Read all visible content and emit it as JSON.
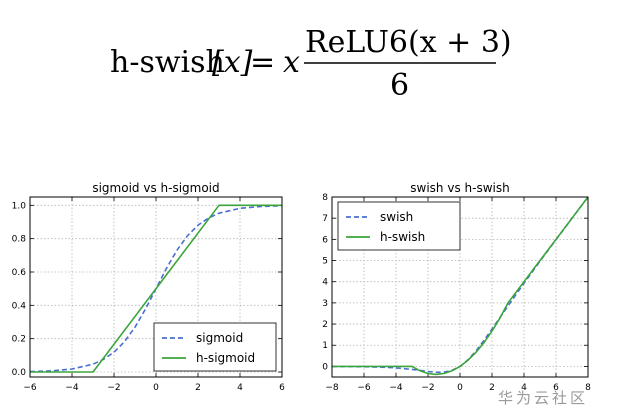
{
  "formula": {
    "lhs": "h-swish",
    "lhs_arg": "[x]",
    "equals": "=",
    "x": "x",
    "numerator": "ReLU6(x + 3)",
    "denominator": "6"
  },
  "watermark": {
    "text": "华为云社区",
    "url_text": "https://"
  },
  "colors": {
    "dashed_series": "#4a6fd2",
    "solid_series": "#3aa53a",
    "grid": "#b5b5b5"
  },
  "chart_data": [
    {
      "type": "line",
      "title": "sigmoid vs h-sigmoid",
      "xlabel": "",
      "ylabel": "",
      "xlim": [
        -6,
        6
      ],
      "ylim": [
        -0.03,
        1.05
      ],
      "xticks": [
        -6,
        -4,
        -2,
        0,
        2,
        4,
        6
      ],
      "xtick_labels": [
        "−6",
        "−4",
        "−2",
        "0",
        "2",
        "4",
        "6"
      ],
      "yticks": [
        0.0,
        0.2,
        0.4,
        0.6,
        0.8,
        1.0
      ],
      "ytick_labels": [
        "0.0",
        "0.2",
        "0.4",
        "0.6",
        "0.8",
        "1.0"
      ],
      "grid": true,
      "legend_position": "lower-right",
      "series": [
        {
          "name": "sigmoid",
          "style": "dashed",
          "color": "#4a6fd2",
          "x": [
            -6,
            -5,
            -4,
            -3,
            -2.5,
            -2,
            -1.5,
            -1,
            -0.5,
            0,
            0.5,
            1,
            1.5,
            2,
            2.5,
            3,
            4,
            5,
            6
          ],
          "y": [
            0.0025,
            0.0067,
            0.018,
            0.047,
            0.076,
            0.119,
            0.182,
            0.269,
            0.378,
            0.5,
            0.622,
            0.731,
            0.818,
            0.881,
            0.924,
            0.953,
            0.982,
            0.993,
            0.998
          ]
        },
        {
          "name": "h-sigmoid",
          "style": "solid",
          "color": "#3aa53a",
          "x": [
            -6,
            -3,
            3,
            6
          ],
          "y": [
            0.0,
            0.0,
            1.0,
            1.0
          ]
        }
      ]
    },
    {
      "type": "line",
      "title": "swish vs h-swish",
      "xlabel": "",
      "ylabel": "",
      "xlim": [
        -8,
        8
      ],
      "ylim": [
        -0.5,
        8
      ],
      "xticks": [
        -8,
        -6,
        -4,
        -2,
        0,
        2,
        4,
        6,
        8
      ],
      "xtick_labels": [
        "−8",
        "−6",
        "−4",
        "−2",
        "0",
        "2",
        "4",
        "6",
        "8"
      ],
      "yticks": [
        0,
        1,
        2,
        3,
        4,
        5,
        6,
        7,
        8
      ],
      "ytick_labels": [
        "0",
        "1",
        "2",
        "3",
        "4",
        "5",
        "6",
        "7",
        "8"
      ],
      "grid": true,
      "legend_position": "upper-left",
      "series": [
        {
          "name": "swish",
          "style": "dashed",
          "color": "#4a6fd2",
          "x": [
            -8,
            -6,
            -5,
            -4,
            -3,
            -2.5,
            -2,
            -1.5,
            -1.28,
            -1,
            -0.5,
            0,
            0.5,
            1,
            1.5,
            2,
            2.5,
            3,
            4,
            5,
            6,
            7,
            8
          ],
          "y": [
            -0.003,
            -0.015,
            -0.033,
            -0.072,
            -0.142,
            -0.19,
            -0.238,
            -0.274,
            -0.278,
            -0.269,
            -0.189,
            0,
            0.311,
            0.731,
            1.227,
            1.762,
            2.311,
            2.857,
            3.928,
            4.967,
            5.985,
            6.994,
            7.997
          ]
        },
        {
          "name": "h-swish",
          "style": "solid",
          "color": "#3aa53a",
          "x": [
            -8,
            -3,
            -2.5,
            -2,
            -1.5,
            -1,
            -0.5,
            0,
            0.5,
            1,
            1.5,
            2,
            2.5,
            3,
            4,
            5,
            6,
            7,
            8
          ],
          "y": [
            0,
            0,
            -0.208,
            -0.333,
            -0.375,
            -0.333,
            -0.208,
            0,
            0.292,
            0.667,
            1.125,
            1.667,
            2.292,
            3,
            4,
            5,
            6,
            7,
            8
          ]
        }
      ]
    }
  ]
}
